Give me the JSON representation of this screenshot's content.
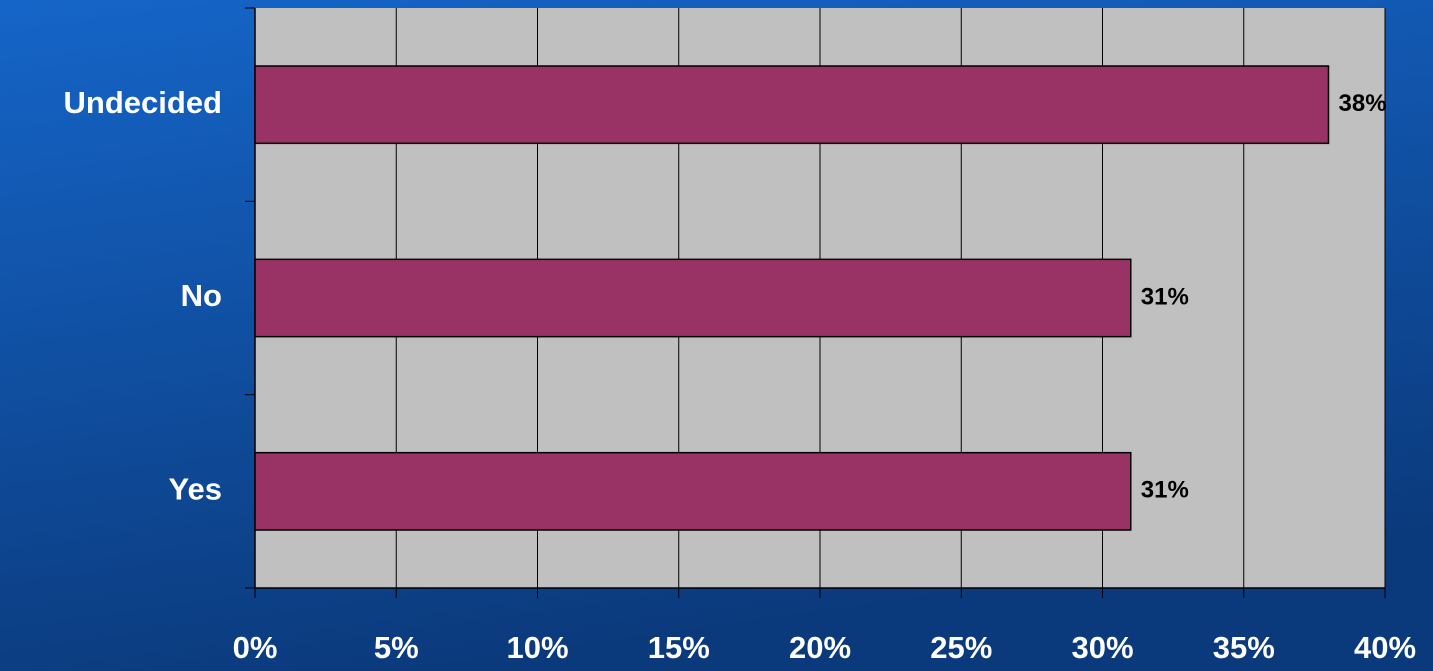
{
  "chart_data": {
    "type": "bar",
    "orientation": "horizontal",
    "categories": [
      "Undecided",
      "No",
      "Yes"
    ],
    "values": [
      38,
      31,
      31
    ],
    "value_labels": [
      "38%",
      "31%",
      "31%"
    ],
    "color": "#993366",
    "xlim": [
      0,
      40
    ],
    "xticks": [
      {
        "value": 0,
        "label": "0%"
      },
      {
        "value": 5,
        "label": "5%"
      },
      {
        "value": 10,
        "label": "10%"
      },
      {
        "value": 15,
        "label": "15%"
      },
      {
        "value": 20,
        "label": "20%"
      },
      {
        "value": 25,
        "label": "25%"
      },
      {
        "value": 30,
        "label": "30%"
      },
      {
        "value": 35,
        "label": "35%"
      },
      {
        "value": 40,
        "label": "40%"
      }
    ],
    "grid": true
  }
}
